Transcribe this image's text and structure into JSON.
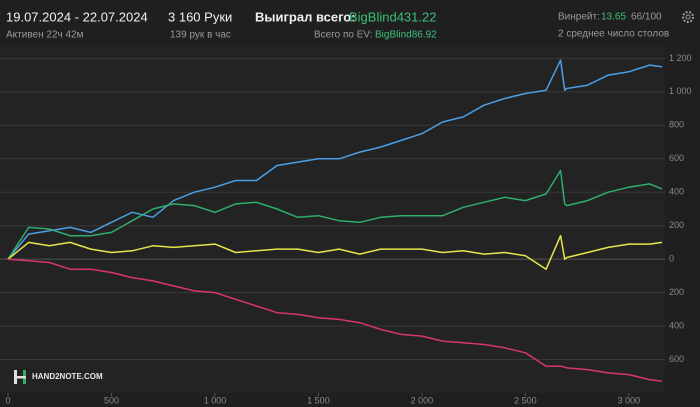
{
  "header": {
    "date_range": "19.07.2024 - 22.07.2024",
    "active": "Активен 22ч 42м",
    "hands": "3 160 Руки",
    "hands_per_hour": "139 рук в час",
    "won_label": "Выиграл всего:",
    "won_value": "BigBlind431.22",
    "ev_label": "Всего по EV:",
    "ev_value": "BigBlind86.92",
    "winrate_label": "Винрейт:",
    "winrate_value": "13.65",
    "winrate_sample": "66/100",
    "tables": "2 среднее число столов"
  },
  "watermark": "HAND2NOTE.COM",
  "chart_data": {
    "type": "line",
    "x": [
      0,
      100,
      200,
      300,
      400,
      500,
      600,
      700,
      800,
      900,
      1000,
      1100,
      1200,
      1300,
      1400,
      1500,
      1600,
      1700,
      1800,
      1900,
      2000,
      2100,
      2200,
      2300,
      2400,
      2500,
      2600,
      2670,
      2690,
      2700,
      2800,
      2900,
      3000,
      3100,
      3160
    ],
    "series": [
      {
        "color": "#4a9fe6",
        "values": [
          0,
          150,
          170,
          190,
          160,
          220,
          280,
          250,
          350,
          400,
          430,
          470,
          470,
          560,
          580,
          600,
          600,
          640,
          670,
          710,
          750,
          820,
          850,
          920,
          960,
          990,
          1010,
          1190,
          1010,
          1020,
          1040,
          1100,
          1120,
          1160,
          1150
        ]
      },
      {
        "color": "#2fae6c",
        "values": [
          0,
          190,
          180,
          140,
          140,
          160,
          230,
          300,
          330,
          320,
          280,
          330,
          340,
          300,
          250,
          260,
          230,
          220,
          250,
          260,
          260,
          260,
          310,
          340,
          370,
          350,
          390,
          530,
          330,
          320,
          350,
          400,
          430,
          450,
          420
        ]
      },
      {
        "color": "#e6e64a",
        "values": [
          0,
          100,
          80,
          100,
          60,
          40,
          50,
          80,
          70,
          80,
          90,
          40,
          50,
          60,
          60,
          40,
          60,
          30,
          60,
          60,
          60,
          40,
          50,
          30,
          40,
          20,
          -60,
          140,
          0,
          10,
          40,
          70,
          90,
          90,
          100
        ]
      },
      {
        "color": "#d8356e",
        "values": [
          0,
          -10,
          -20,
          -60,
          -60,
          -80,
          -110,
          -130,
          -160,
          -190,
          -200,
          -240,
          -280,
          -320,
          -330,
          -350,
          -360,
          -380,
          -420,
          -450,
          -460,
          -490,
          -500,
          -510,
          -530,
          -560,
          -640,
          -640,
          -645,
          -650,
          -660,
          -680,
          -690,
          -720,
          -730
        ]
      }
    ],
    "xlim": [
      0,
      3160
    ],
    "xticks": [
      0,
      500,
      {
        "value": 1000,
        "label": "1 000"
      },
      {
        "value": 1500,
        "label": "1 500"
      },
      {
        "value": 2000,
        "label": "2 000"
      },
      {
        "value": 2500,
        "label": "2 500"
      },
      {
        "value": 3000,
        "label": "3 000"
      }
    ],
    "ylim": [
      -800,
      1280
    ],
    "yticks": [
      {
        "value": 1200,
        "label": "1 200"
      },
      {
        "value": 1000,
        "label": "1 000"
      },
      800,
      600,
      400,
      200,
      0,
      {
        "value": -200,
        "label": "200"
      },
      {
        "value": -400,
        "label": "400"
      },
      {
        "value": -600,
        "label": "600"
      }
    ],
    "grid": true
  }
}
